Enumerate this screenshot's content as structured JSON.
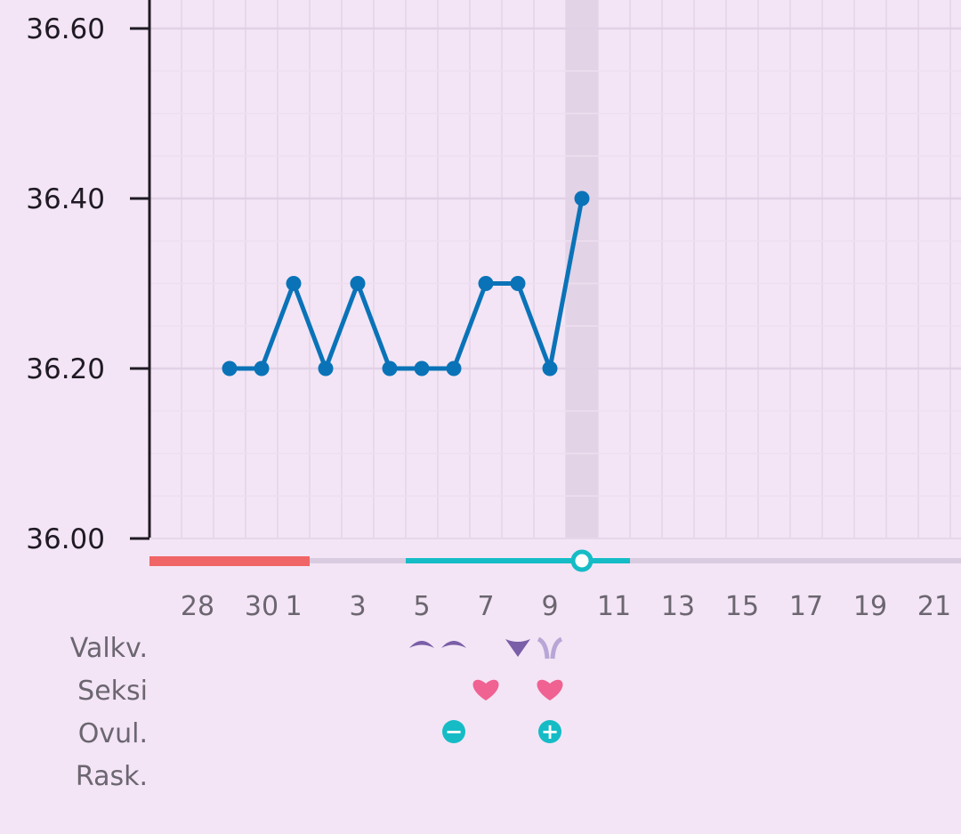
{
  "chart_data": {
    "type": "line",
    "ylim": [
      36.0,
      36.6
    ],
    "y_ticks": [
      "36.00",
      "36.20",
      "36.40",
      "36.60"
    ],
    "x_ticks": [
      "28",
      "30",
      "1",
      "3",
      "5",
      "7",
      "9",
      "11",
      "13",
      "15",
      "17",
      "19",
      "21"
    ],
    "series": [
      {
        "x": [
          29,
          30,
          1,
          2,
          3,
          4,
          5,
          6,
          7,
          8,
          9,
          10
        ],
        "values": [
          36.2,
          36.2,
          36.3,
          36.2,
          36.3,
          36.2,
          36.2,
          36.2,
          36.3,
          36.3,
          36.2,
          36.4
        ]
      }
    ],
    "selected_day": 10,
    "grid": true,
    "colors": {
      "line": "#0a73b8",
      "period": "#f06565",
      "fertile": "#15bcc6",
      "track": "#d9cbe0",
      "highlight": "#e2d3e6",
      "marker_purple": "#7a5ea8",
      "heart": "#f06292",
      "ovulation": "#15bcc6"
    }
  },
  "rows": {
    "labels": [
      "Valkv.",
      "Seksi",
      "Ovul.",
      "Rask."
    ],
    "mucus": [
      {
        "day": 5,
        "icon": "dry-mucus-icon"
      },
      {
        "day": 6,
        "icon": "dry-mucus-icon"
      },
      {
        "day": 8,
        "icon": "creamy-mucus-icon"
      },
      {
        "day": 9,
        "icon": "eggwhite-mucus-icon"
      }
    ],
    "sex": [
      {
        "day": 7,
        "icon": "heart-icon"
      },
      {
        "day": 9,
        "icon": "heart-icon"
      }
    ],
    "ovulation": [
      {
        "day": 6,
        "icon": "ovulation-negative-icon",
        "symbol": "−"
      },
      {
        "day": 9,
        "icon": "ovulation-positive-icon",
        "symbol": "+"
      }
    ]
  }
}
